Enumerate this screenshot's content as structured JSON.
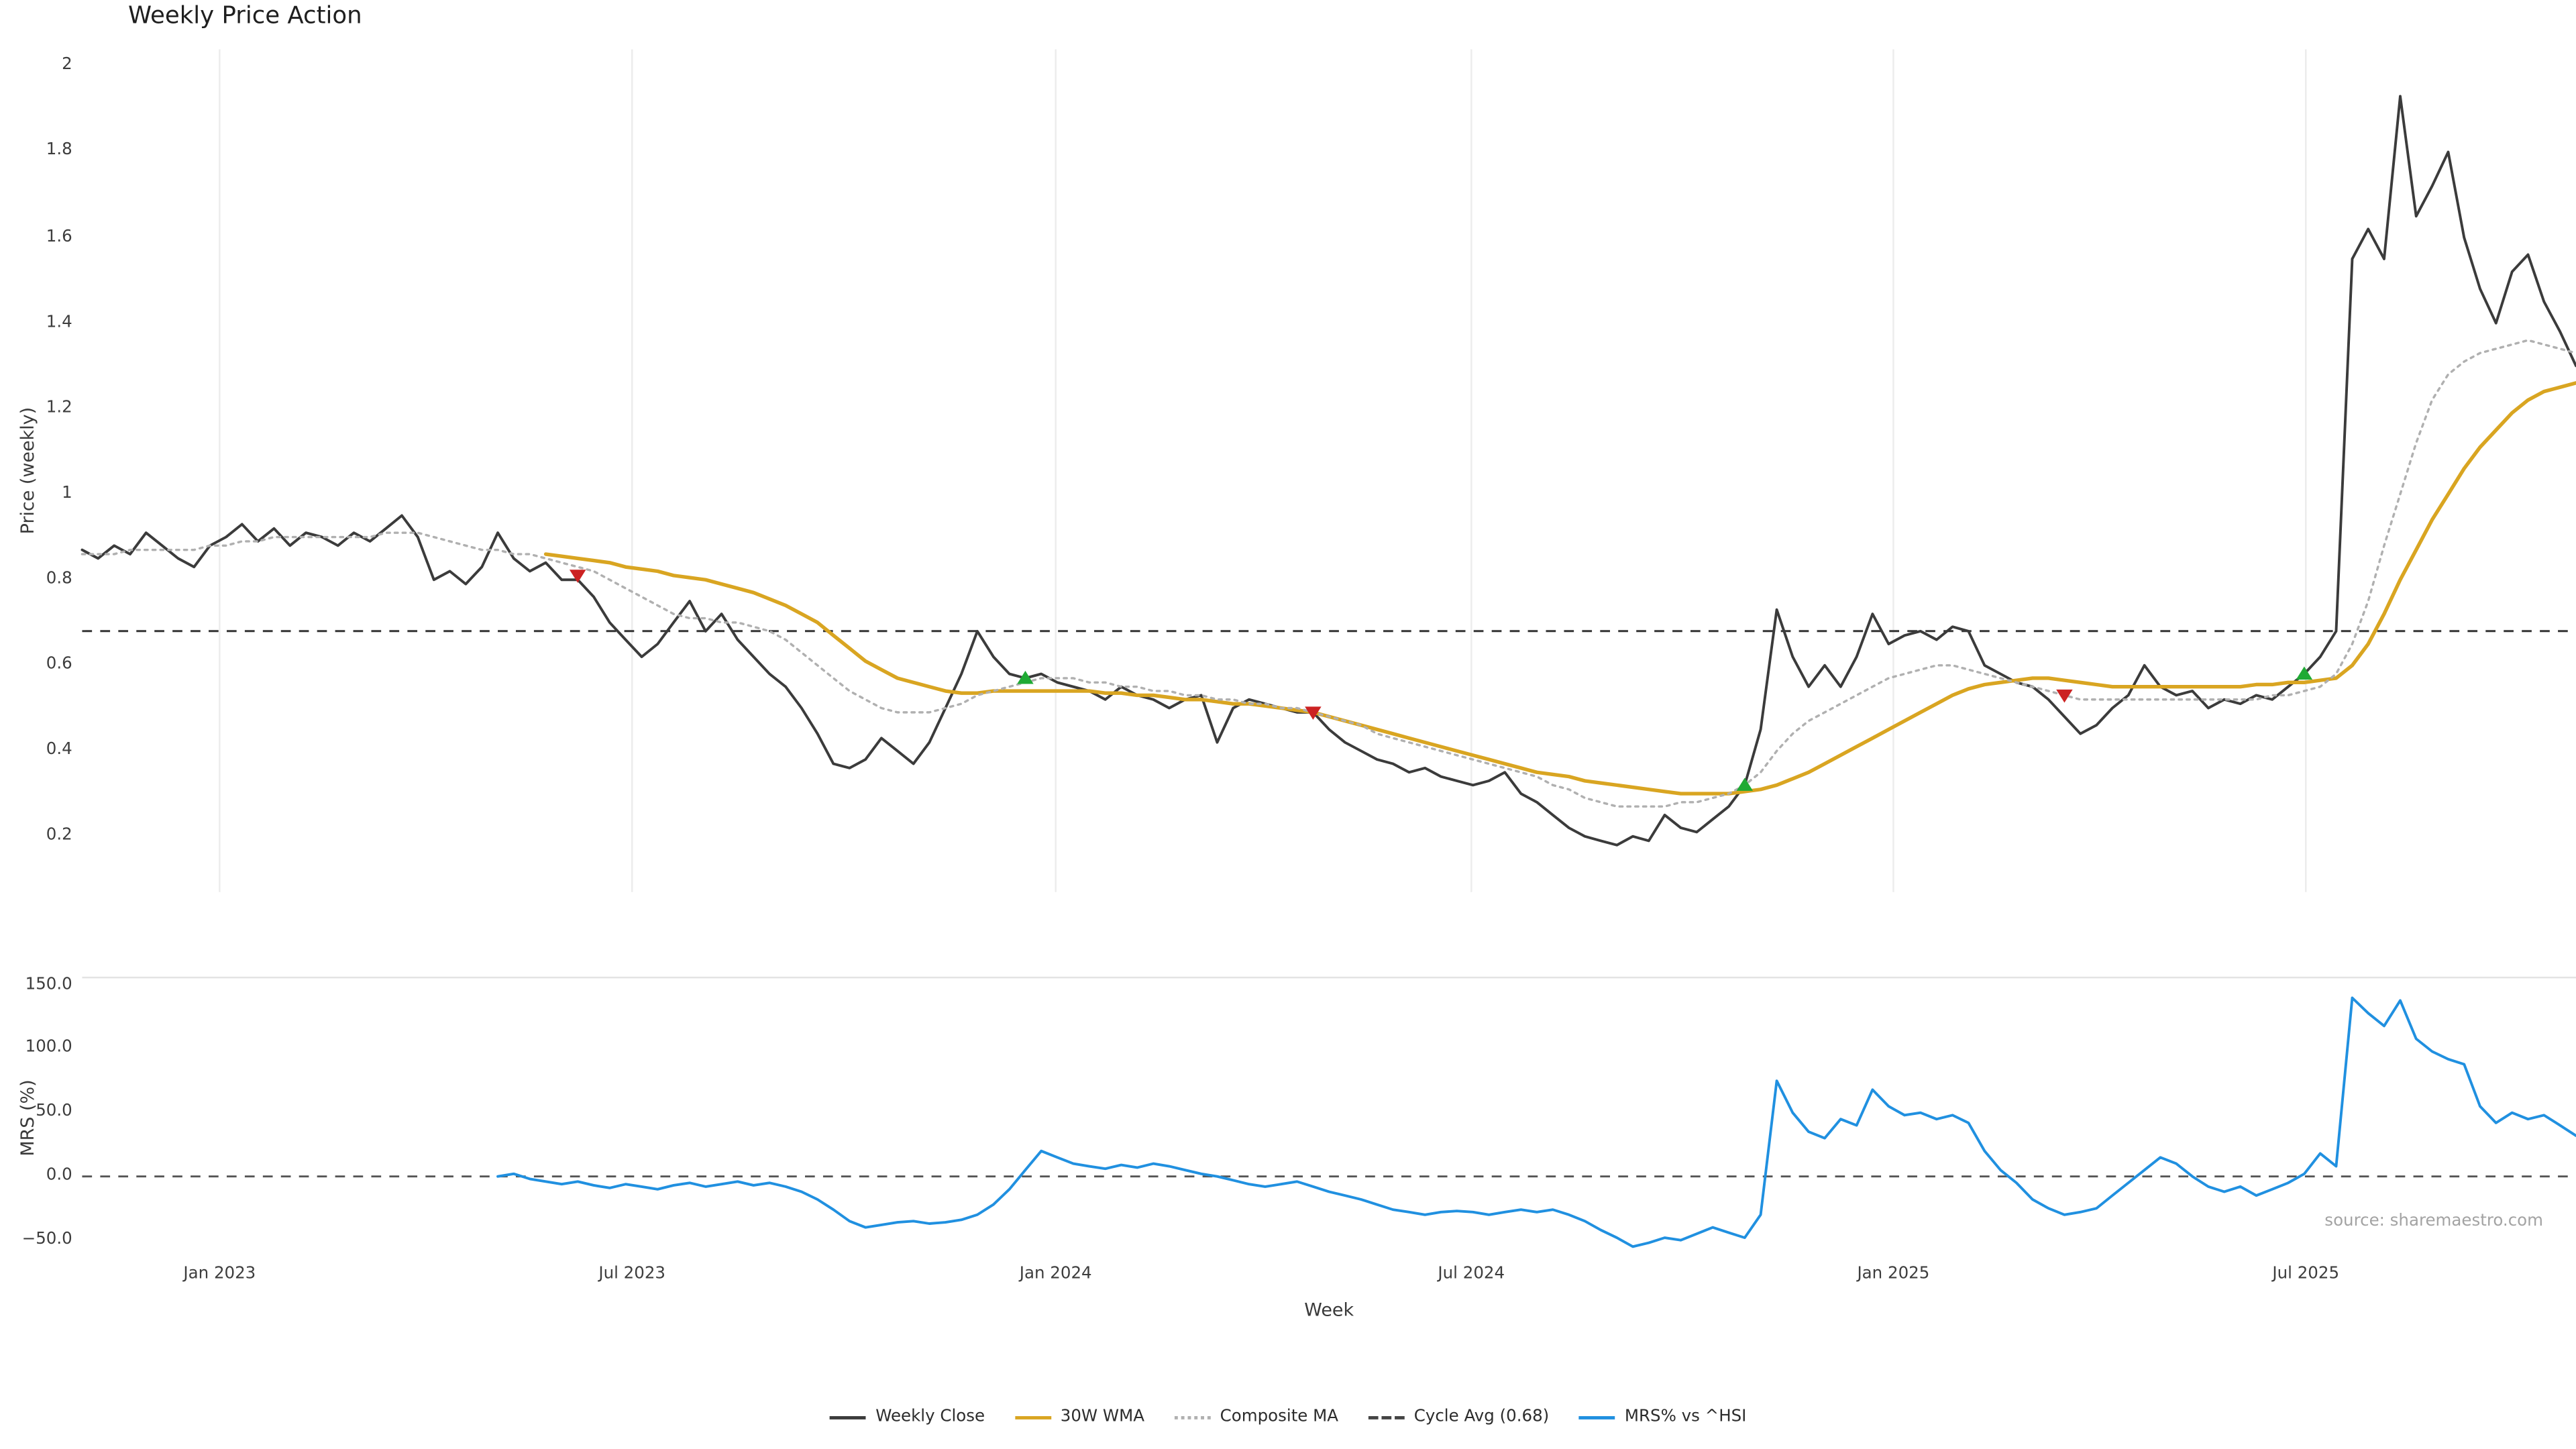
{
  "title": "Weekly Price Action",
  "source": "source: sharemaestro.com",
  "axes": {
    "price_ylabel": "Price (weekly)",
    "mrs_ylabel": "MRS (%)",
    "xlabel": "Week",
    "price_ticks": [
      {
        "label": "2",
        "value": 2
      },
      {
        "label": "1.8",
        "value": 1.8
      },
      {
        "label": "1.6",
        "value": 1.6
      },
      {
        "label": "1.4",
        "value": 1.4
      },
      {
        "label": "1.2",
        "value": 1.2
      },
      {
        "label": "1",
        "value": 1
      },
      {
        "label": "0.8",
        "value": 0.8
      },
      {
        "label": "0.6",
        "value": 0.6
      },
      {
        "label": "0.4",
        "value": 0.4
      },
      {
        "label": "0.2",
        "value": 0.2
      }
    ],
    "mrs_ticks": [
      {
        "label": "150.0",
        "value": 150
      },
      {
        "label": "100.0",
        "value": 100
      },
      {
        "label": "50.0",
        "value": 50
      },
      {
        "label": "0.0",
        "value": 0
      },
      {
        "label": "−50.0",
        "value": -50
      }
    ]
  },
  "legend": [
    {
      "label": "Weekly Close",
      "color": "#3b3b3b",
      "style": "solid"
    },
    {
      "label": "30W WMA",
      "color": "#d9a521",
      "style": "solid"
    },
    {
      "label": "Composite MA",
      "color": "#b0b0b0",
      "style": "dotted"
    },
    {
      "label": "Cycle Avg (0.68)",
      "color": "#444444",
      "style": "dashed"
    },
    {
      "label": "MRS% vs ^HSI",
      "color": "#2090e0",
      "style": "solid"
    }
  ],
  "chart_data": {
    "type": "line",
    "panels": [
      "price",
      "mrs"
    ],
    "x_unit": "week_index",
    "weeks": 157,
    "x_tick_weeks": [
      8.6,
      34.4,
      60.9,
      86.9,
      113.3,
      139.1
    ],
    "x_tick_labels": [
      "Jan 2023",
      "Jul 2023",
      "Jan 2024",
      "Jul 2024",
      "Jan 2025",
      "Jul 2025"
    ],
    "price_ylim": [
      0.07,
      2.04
    ],
    "mrs_ylim": [
      -63,
      156
    ],
    "grid": "vertical-light",
    "legend_position": "bottom-center",
    "series": [
      {
        "name": "Weekly Close",
        "panel": "price",
        "color": "#3b3b3b",
        "style": "solid",
        "width": 1.6,
        "start_week": 0,
        "values": [
          0.87,
          0.85,
          0.88,
          0.86,
          0.91,
          0.88,
          0.85,
          0.83,
          0.88,
          0.9,
          0.93,
          0.89,
          0.92,
          0.88,
          0.91,
          0.9,
          0.88,
          0.91,
          0.89,
          0.92,
          0.95,
          0.9,
          0.8,
          0.82,
          0.79,
          0.83,
          0.91,
          0.85,
          0.82,
          0.84,
          0.8,
          0.8,
          0.76,
          0.7,
          0.66,
          0.62,
          0.65,
          0.7,
          0.75,
          0.68,
          0.72,
          0.66,
          0.62,
          0.58,
          0.55,
          0.5,
          0.44,
          0.37,
          0.36,
          0.38,
          0.43,
          0.4,
          0.37,
          0.42,
          0.5,
          0.58,
          0.68,
          0.62,
          0.58,
          0.57,
          0.58,
          0.56,
          0.55,
          0.54,
          0.52,
          0.55,
          0.53,
          0.52,
          0.5,
          0.52,
          0.53,
          0.42,
          0.5,
          0.52,
          0.51,
          0.5,
          0.49,
          0.49,
          0.45,
          0.42,
          0.4,
          0.38,
          0.37,
          0.35,
          0.36,
          0.34,
          0.33,
          0.32,
          0.33,
          0.35,
          0.3,
          0.28,
          0.25,
          0.22,
          0.2,
          0.19,
          0.18,
          0.2,
          0.19,
          0.25,
          0.22,
          0.21,
          0.24,
          0.27,
          0.32,
          0.45,
          0.73,
          0.62,
          0.55,
          0.6,
          0.55,
          0.62,
          0.72,
          0.65,
          0.67,
          0.68,
          0.66,
          0.69,
          0.68,
          0.6,
          0.58,
          0.56,
          0.55,
          0.52,
          0.48,
          0.44,
          0.46,
          0.5,
          0.53,
          0.6,
          0.55,
          0.53,
          0.54,
          0.5,
          0.52,
          0.51,
          0.53,
          0.52,
          0.55,
          0.58,
          0.62,
          0.68,
          1.55,
          1.62,
          1.55,
          1.93,
          1.65,
          1.72,
          1.8,
          1.6,
          1.48,
          1.4,
          1.52,
          1.56,
          1.45,
          1.38,
          1.3
        ]
      },
      {
        "name": "30W WMA",
        "panel": "price",
        "color": "#d9a521",
        "style": "solid",
        "width": 2.2,
        "start_week": 29,
        "values": [
          0.86,
          0.855,
          0.85,
          0.845,
          0.84,
          0.83,
          0.825,
          0.82,
          0.81,
          0.805,
          0.8,
          0.79,
          0.78,
          0.77,
          0.755,
          0.74,
          0.72,
          0.7,
          0.67,
          0.64,
          0.61,
          0.59,
          0.57,
          0.56,
          0.55,
          0.54,
          0.535,
          0.535,
          0.54,
          0.54,
          0.54,
          0.54,
          0.54,
          0.54,
          0.54,
          0.535,
          0.535,
          0.53,
          0.53,
          0.525,
          0.52,
          0.52,
          0.515,
          0.51,
          0.51,
          0.505,
          0.5,
          0.495,
          0.49,
          0.48,
          0.47,
          0.46,
          0.45,
          0.44,
          0.43,
          0.42,
          0.41,
          0.4,
          0.39,
          0.38,
          0.37,
          0.36,
          0.35,
          0.345,
          0.34,
          0.33,
          0.325,
          0.32,
          0.315,
          0.31,
          0.305,
          0.3,
          0.3,
          0.3,
          0.3,
          0.305,
          0.31,
          0.32,
          0.335,
          0.35,
          0.37,
          0.39,
          0.41,
          0.43,
          0.45,
          0.47,
          0.49,
          0.51,
          0.53,
          0.545,
          0.555,
          0.56,
          0.565,
          0.57,
          0.57,
          0.565,
          0.56,
          0.555,
          0.55,
          0.55,
          0.55,
          0.55,
          0.55,
          0.55,
          0.55,
          0.55,
          0.55,
          0.555,
          0.555,
          0.56,
          0.56,
          0.565,
          0.57,
          0.6,
          0.65,
          0.72,
          0.8,
          0.87,
          0.94,
          1.0,
          1.06,
          1.11,
          1.15,
          1.19,
          1.22,
          1.24,
          1.25,
          1.26
        ]
      },
      {
        "name": "Composite MA",
        "panel": "price",
        "color": "#b0b0b0",
        "style": "dotted",
        "width": 1.4,
        "start_week": 0,
        "values": [
          0.86,
          0.86,
          0.86,
          0.87,
          0.87,
          0.87,
          0.87,
          0.87,
          0.88,
          0.88,
          0.89,
          0.89,
          0.9,
          0.9,
          0.9,
          0.9,
          0.9,
          0.9,
          0.9,
          0.91,
          0.91,
          0.91,
          0.9,
          0.89,
          0.88,
          0.87,
          0.87,
          0.86,
          0.86,
          0.85,
          0.84,
          0.83,
          0.82,
          0.8,
          0.78,
          0.76,
          0.74,
          0.72,
          0.71,
          0.71,
          0.7,
          0.7,
          0.69,
          0.68,
          0.66,
          0.63,
          0.6,
          0.57,
          0.54,
          0.52,
          0.5,
          0.49,
          0.49,
          0.49,
          0.5,
          0.51,
          0.53,
          0.54,
          0.55,
          0.56,
          0.57,
          0.57,
          0.57,
          0.56,
          0.56,
          0.55,
          0.55,
          0.54,
          0.54,
          0.53,
          0.53,
          0.52,
          0.52,
          0.51,
          0.51,
          0.5,
          0.5,
          0.49,
          0.48,
          0.47,
          0.46,
          0.44,
          0.43,
          0.42,
          0.41,
          0.4,
          0.39,
          0.38,
          0.37,
          0.36,
          0.35,
          0.34,
          0.32,
          0.31,
          0.29,
          0.28,
          0.27,
          0.27,
          0.27,
          0.27,
          0.28,
          0.28,
          0.29,
          0.3,
          0.32,
          0.35,
          0.4,
          0.44,
          0.47,
          0.49,
          0.51,
          0.53,
          0.55,
          0.57,
          0.58,
          0.59,
          0.6,
          0.6,
          0.59,
          0.58,
          0.57,
          0.56,
          0.55,
          0.54,
          0.53,
          0.52,
          0.52,
          0.52,
          0.52,
          0.52,
          0.52,
          0.52,
          0.52,
          0.52,
          0.52,
          0.52,
          0.52,
          0.53,
          0.53,
          0.54,
          0.55,
          0.58,
          0.65,
          0.75,
          0.88,
          1.0,
          1.12,
          1.22,
          1.28,
          1.31,
          1.33,
          1.34,
          1.35,
          1.36,
          1.35,
          1.34,
          1.33
        ]
      },
      {
        "name": "MRS% vs ^HSI",
        "panel": "mrs",
        "color": "#2090e0",
        "style": "solid",
        "width": 1.6,
        "start_week": 26,
        "values": [
          0,
          2,
          -2,
          -4,
          -6,
          -4,
          -7,
          -9,
          -6,
          -8,
          -10,
          -7,
          -5,
          -8,
          -6,
          -4,
          -7,
          -5,
          -8,
          -12,
          -18,
          -26,
          -35,
          -40,
          -38,
          -36,
          -35,
          -37,
          -36,
          -34,
          -30,
          -22,
          -10,
          5,
          20,
          15,
          10,
          8,
          6,
          9,
          7,
          10,
          8,
          5,
          2,
          0,
          -3,
          -6,
          -8,
          -6,
          -4,
          -8,
          -12,
          -15,
          -18,
          -22,
          -26,
          -28,
          -30,
          -28,
          -27,
          -28,
          -30,
          -28,
          -26,
          -28,
          -26,
          -30,
          -35,
          -42,
          -48,
          -55,
          -52,
          -48,
          -50,
          -45,
          -40,
          -44,
          -48,
          -30,
          75,
          50,
          35,
          30,
          45,
          40,
          68,
          55,
          48,
          50,
          45,
          48,
          42,
          20,
          5,
          -5,
          -18,
          -25,
          -30,
          -28,
          -25,
          -15,
          -5,
          5,
          15,
          10,
          0,
          -8,
          -12,
          -8,
          -15,
          -10,
          -5,
          2,
          18,
          8,
          140,
          128,
          118,
          138,
          108,
          98,
          92,
          88,
          55,
          42,
          50,
          45,
          48,
          40,
          32
        ]
      }
    ],
    "reference_lines": [
      {
        "name": "Cycle Avg",
        "panel": "price",
        "value": 0.68,
        "style": "dashed",
        "color": "#333333"
      },
      {
        "name": "Zero Line",
        "panel": "mrs",
        "value": 0,
        "style": "dashed",
        "color": "#555555"
      }
    ],
    "markers": {
      "buy": [
        {
          "week": 59,
          "value": 0.57
        },
        {
          "week": 104,
          "value": 0.32
        },
        {
          "week": 139,
          "value": 0.58
        }
      ],
      "sell": [
        {
          "week": 31,
          "value": 0.81
        },
        {
          "week": 77,
          "value": 0.49
        },
        {
          "week": 124,
          "value": 0.53
        }
      ],
      "buy_color": "#1faa34",
      "sell_color": "#cc2222"
    }
  }
}
